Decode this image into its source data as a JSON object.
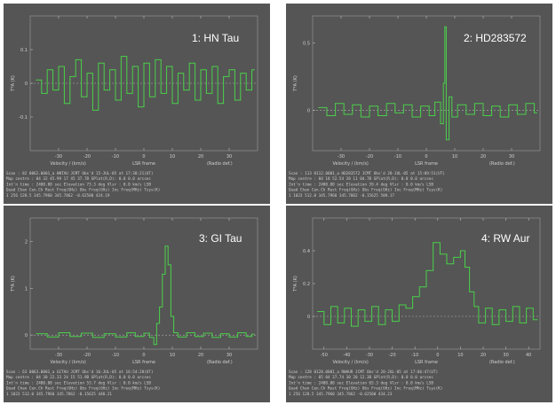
{
  "chart_data": [
    {
      "type": "line",
      "title": "1: HN Tau",
      "xlabel": "Velocity / (km/s)",
      "xlabel2": "LSR frame",
      "xlabel3": "(Radio def.)",
      "ylabel": "T*A (K)",
      "xlim": [
        -40,
        40
      ],
      "ylim": [
        -0.2,
        0.2
      ],
      "xticks": [
        -30,
        -20,
        -10,
        0,
        10,
        20,
        30
      ],
      "yticks": [
        -0.1,
        0,
        0.1
      ],
      "ytick_labels": [
        "-0.1",
        "0",
        "0.1"
      ],
      "line_color": "#4ad04a",
      "baseline_color": "#b0b0b0",
      "points": [
        [
          -38,
          0.01
        ],
        [
          -36,
          -0.03
        ],
        [
          -34,
          0.04
        ],
        [
          -32,
          -0.02
        ],
        [
          -30,
          0.05
        ],
        [
          -28,
          -0.06
        ],
        [
          -26,
          0.02
        ],
        [
          -24,
          0.07
        ],
        [
          -22,
          -0.04
        ],
        [
          -20,
          0.03
        ],
        [
          -18,
          -0.08
        ],
        [
          -16,
          0.06
        ],
        [
          -14,
          -0.02
        ],
        [
          -12,
          0.04
        ],
        [
          -10,
          -0.05
        ],
        [
          -8,
          0.08
        ],
        [
          -6,
          -0.03
        ],
        [
          -4,
          0.05
        ],
        [
          -2,
          -0.07
        ],
        [
          0,
          0.06
        ],
        [
          2,
          -0.04
        ],
        [
          4,
          0.07
        ],
        [
          6,
          -0.03
        ],
        [
          8,
          0.05
        ],
        [
          10,
          -0.06
        ],
        [
          12,
          0.03
        ],
        [
          14,
          -0.02
        ],
        [
          16,
          0.06
        ],
        [
          18,
          -0.05
        ],
        [
          20,
          0.04
        ],
        [
          22,
          -0.03
        ],
        [
          24,
          0.05
        ],
        [
          26,
          -0.06
        ],
        [
          28,
          0.02
        ],
        [
          30,
          0.04
        ],
        [
          32,
          -0.05
        ],
        [
          34,
          0.03
        ],
        [
          36,
          -0.02
        ],
        [
          38,
          0.04
        ]
      ],
      "header_lines": [
        "Scan : 82 0062.0001_a HNTAU JCMT Obs'd 15-JUL-05 at 17:38:21(UT)",
        "Map centre : 04 32 45.99 17 45 37.7B GPlat(R,D): 0.0 0.0 arcsec",
        "Int'n time : 2400.00 sec Elevation 73.3 deg Vlsr : 0.0 km/s LSB",
        "Quad Chan Cen.Ch Rest Freq(GHz) Obs Freq(GHz) Inc Freq(MHz) Tsys(K)",
        "1 256 128.5 345.7960 345.7862 -0.62500 424.19"
      ]
    },
    {
      "type": "line",
      "title": "2: HD283572",
      "xlabel": "Velocity / (km/s)",
      "xlabel2": "LSR frame",
      "xlabel3": "(Radio def.)",
      "ylabel": "T*A (K)",
      "xlim": [
        -40,
        40
      ],
      "ylim": [
        -0.3,
        0.7
      ],
      "xticks": [
        -30,
        -20,
        -10,
        0,
        10,
        20,
        30
      ],
      "yticks": [
        0,
        0.5
      ],
      "ytick_labels": [
        "0",
        "0.5"
      ],
      "line_color": "#4ad04a",
      "baseline_color": "#b0b0b0",
      "points": [
        [
          -38,
          0.02
        ],
        [
          -35,
          -0.04
        ],
        [
          -32,
          0.05
        ],
        [
          -29,
          -0.03
        ],
        [
          -26,
          0.04
        ],
        [
          -23,
          -0.05
        ],
        [
          -20,
          0.03
        ],
        [
          -17,
          -0.04
        ],
        [
          -14,
          0.05
        ],
        [
          -11,
          -0.02
        ],
        [
          -8,
          0.04
        ],
        [
          -5,
          -0.05
        ],
        [
          -2,
          0.03
        ],
        [
          1,
          -0.04
        ],
        [
          3,
          0.06
        ],
        [
          5,
          -0.1
        ],
        [
          6,
          0.2
        ],
        [
          6.5,
          0.62
        ],
        [
          7,
          -0.22
        ],
        [
          8,
          0.1
        ],
        [
          9,
          -0.05
        ],
        [
          11,
          0.04
        ],
        [
          14,
          -0.03
        ],
        [
          17,
          0.05
        ],
        [
          20,
          -0.04
        ],
        [
          23,
          0.03
        ],
        [
          26,
          -0.05
        ],
        [
          29,
          0.04
        ],
        [
          32,
          -0.03
        ],
        [
          35,
          0.05
        ],
        [
          38,
          -0.02
        ]
      ],
      "header_lines": [
        "Scan : 113 0112.0001_a HD283572 JCMT Obs'd 28-JUL-05 at 15:09:51(UT)",
        "Map centre : 04 18 52.54 28 11 04.7B GPlat(R,D): 0.0 0.0 arcsec",
        "Int'n time : 2400.00 sec Elevation 39.4 deg Vlsr : 0.0 km/s LSB",
        "Quad Chan Cen.Ch Rest Freq(GHz) Obs Freq(GHz) Inc Freq(MHz) Tsys(K)",
        "1 1023 512.0 345.7960 345.7862 -0.15625 509.17"
      ]
    },
    {
      "type": "line",
      "title": "3: GI Tau",
      "xlabel": "Velocity / (km/s)",
      "xlabel2": "LSR frame",
      "xlabel3": "(Radio def.)",
      "ylabel": "T*A (K)",
      "xlim": [
        -40,
        40
      ],
      "ylim": [
        -0.3,
        2.5
      ],
      "xticks": [
        -30,
        -20,
        -10,
        0,
        10,
        20,
        30
      ],
      "yticks": [
        0,
        1,
        2
      ],
      "ytick_labels": [
        "0",
        "1",
        "2"
      ],
      "line_color": "#4ad04a",
      "baseline_color": "#b0b0b0",
      "points": [
        [
          -38,
          0.03
        ],
        [
          -34,
          -0.04
        ],
        [
          -30,
          0.05
        ],
        [
          -26,
          -0.03
        ],
        [
          -22,
          0.04
        ],
        [
          -18,
          -0.05
        ],
        [
          -14,
          0.03
        ],
        [
          -10,
          -0.04
        ],
        [
          -6,
          0.05
        ],
        [
          -3,
          -0.03
        ],
        [
          0,
          0.04
        ],
        [
          2,
          -0.05
        ],
        [
          3.5,
          -0.2
        ],
        [
          4.5,
          0.25
        ],
        [
          5.5,
          0.6
        ],
        [
          6.5,
          1.3
        ],
        [
          7.5,
          1.9
        ],
        [
          8.5,
          1.5
        ],
        [
          9.5,
          0.4
        ],
        [
          10.5,
          0.05
        ],
        [
          12,
          -0.04
        ],
        [
          15,
          0.05
        ],
        [
          18,
          -0.03
        ],
        [
          21,
          0.04
        ],
        [
          24,
          -0.05
        ],
        [
          27,
          0.03
        ],
        [
          30,
          -0.04
        ],
        [
          33,
          0.05
        ],
        [
          36,
          -0.03
        ],
        [
          38,
          0.02
        ]
      ],
      "header_lines": [
        "Scan : 63 0063.0001_a GITAU JCMT Obs'd 16-JUL-05 at 16:54:28(UT)",
        "Map centre : 04 30 22.33 24 15 51.9B GPlat(R,D): 0.0 0.0 arcsec",
        "Int'n time : 2400.00 sec Elevation 53.7 deg Vlsr : 0.0 km/s LSB",
        "Quad Chan Cen.Ch Rest Freq(GHz) Obs Freq(GHz) Inc Freq(MHz) Tsys(K)",
        "1 1023 512.0 345.7960 345.7862 -0.15625 448.21"
      ]
    },
    {
      "type": "line",
      "title": "4: RW Aur",
      "xlabel": "Velocity / (km/s)",
      "xlabel2": "LSR frame",
      "xlabel3": "(Radio def.)",
      "ylabel": "T*A (K)",
      "xlim": [
        -55,
        45
      ],
      "ylim": [
        -0.2,
        0.6
      ],
      "xticks": [
        -50,
        -40,
        -30,
        -20,
        -10,
        0,
        10,
        20,
        30,
        40
      ],
      "yticks": [
        0,
        0.2,
        0.4
      ],
      "ytick_labels": [
        "0",
        "0.2",
        "0.4"
      ],
      "line_color": "#4ad04a",
      "baseline_color": "#b0b0b0",
      "points": [
        [
          -53,
          0.03
        ],
        [
          -50,
          -0.05
        ],
        [
          -47,
          0.06
        ],
        [
          -44,
          -0.04
        ],
        [
          -41,
          0.05
        ],
        [
          -38,
          -0.06
        ],
        [
          -35,
          0.04
        ],
        [
          -32,
          -0.03
        ],
        [
          -29,
          0.06
        ],
        [
          -26,
          -0.05
        ],
        [
          -23,
          0.04
        ],
        [
          -20,
          -0.03
        ],
        [
          -17,
          0.07
        ],
        [
          -14,
          0.05
        ],
        [
          -11,
          0.12
        ],
        [
          -8,
          0.18
        ],
        [
          -5,
          0.28
        ],
        [
          -2,
          0.45
        ],
        [
          1,
          0.38
        ],
        [
          4,
          0.32
        ],
        [
          7,
          0.36
        ],
        [
          10,
          0.4
        ],
        [
          12,
          0.3
        ],
        [
          14,
          0.15
        ],
        [
          16,
          0.06
        ],
        [
          18,
          -0.04
        ],
        [
          21,
          0.05
        ],
        [
          24,
          -0.05
        ],
        [
          27,
          0.04
        ],
        [
          30,
          -0.03
        ],
        [
          33,
          0.06
        ],
        [
          36,
          -0.04
        ],
        [
          39,
          0.05
        ],
        [
          42,
          -0.02
        ]
      ],
      "header_lines": [
        "Scan : 128 0128.0001_a RWAUR JCMT Obs'd 20-JUL-05 at 17:06:47(UT)",
        "Map centre : 05 04 37.74 30 20 12.3B GPlat(R,D): 0.0 0.0 arcsec",
        "Int'n time : 2400.00 sec Elevation 65.3 deg Vlsr : 0.0 km/s LSB",
        "Quad Chan Cen.Ch Rest Freq(GHz) Obs Freq(GHz) Inc Freq(MHz) Tsys(K)",
        "1 256 128.5 345.7960 345.7862 -0.62500 434.23"
      ]
    }
  ]
}
